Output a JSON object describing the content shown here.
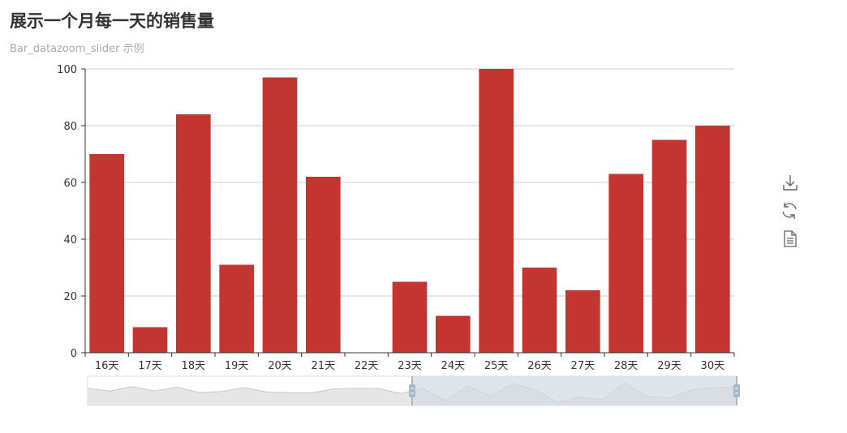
{
  "title": "展示一个月每一天的销售量",
  "subtitle": "Bar_datazoom_slider 示例",
  "colors": {
    "bar": "#c23531",
    "axis": "#333333",
    "grid": "#cccccc",
    "slider_fill": "#d3d9e3",
    "slider_handle": "#a7b7cc",
    "slider_shadow": "#e6e6e6"
  },
  "toolbox": [
    {
      "name": "save-as-image",
      "icon": "download-icon"
    },
    {
      "name": "restore",
      "icon": "refresh-icon"
    },
    {
      "name": "data-view",
      "icon": "document-icon"
    }
  ],
  "chart_data": {
    "type": "bar",
    "title": "展示一个月每一天的销售量",
    "subtitle": "Bar_datazoom_slider 示例",
    "ylim": [
      0,
      100
    ],
    "yticks": [
      0,
      20,
      40,
      60,
      80,
      100
    ],
    "grid": true,
    "categories": [
      "16天",
      "17天",
      "18天",
      "19天",
      "20天",
      "21天",
      "22天",
      "23天",
      "24天",
      "25天",
      "26天",
      "27天",
      "28天",
      "29天",
      "30天"
    ],
    "values": [
      70,
      9,
      84,
      31,
      97,
      62,
      0,
      25,
      13,
      100,
      30,
      22,
      63,
      75,
      80
    ],
    "datazoom": {
      "start_percent": 50,
      "end_percent": 100,
      "full_values": [
        72,
        57,
        80,
        58,
        77,
        49,
        55,
        75,
        52,
        49,
        48,
        68,
        71,
        70,
        45,
        70,
        9,
        84,
        31,
        97,
        62,
        0,
        25,
        13,
        100,
        30,
        22,
        63,
        75,
        80
      ]
    }
  }
}
